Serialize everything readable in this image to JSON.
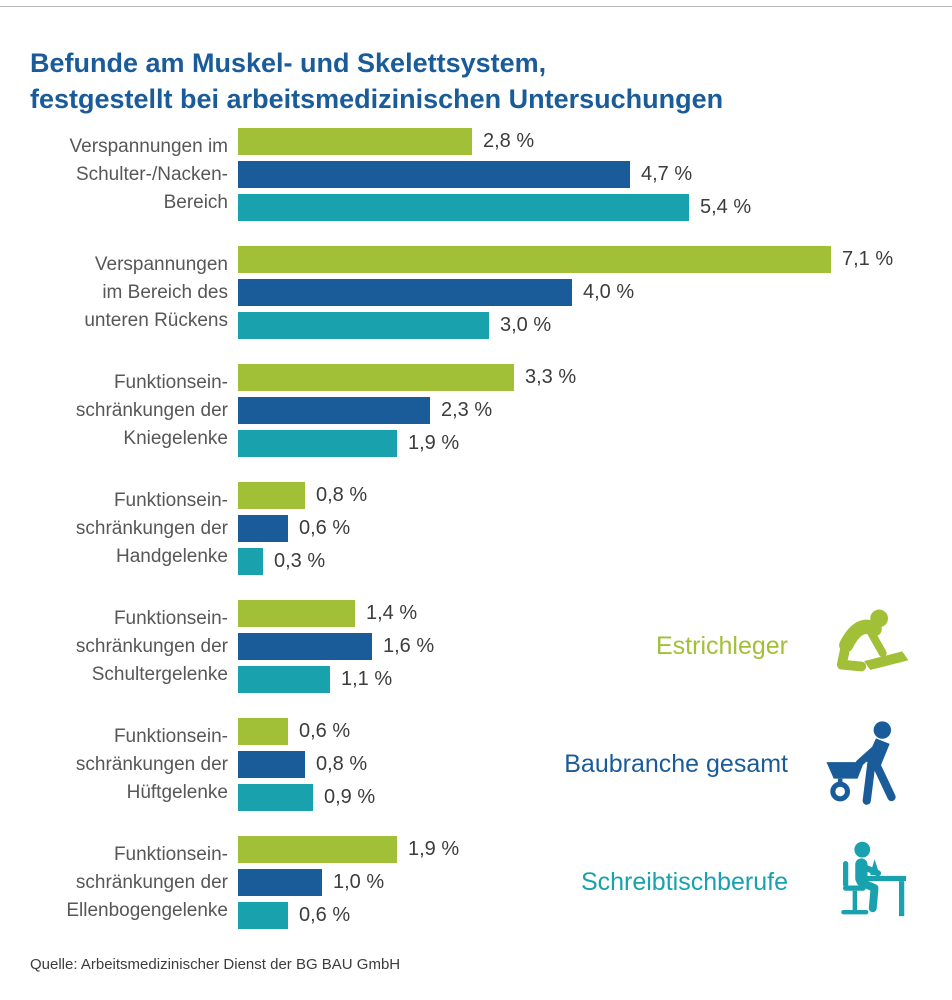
{
  "title": {
    "line1": "Befunde am Muskel- und Skelettsystem,",
    "line2": "festgestellt bei arbeitsmedizinischen Untersuchungen"
  },
  "source": "Quelle: Arbeitsmedizinischer Dienst der BG BAU GmbH",
  "colors": {
    "title_blue": "#1a5c99",
    "estrichleger_green": "#a2c037",
    "baubranche_blue": "#1a5c99",
    "schreibtisch_teal": "#19a2ad",
    "label_gray": "#575756",
    "value_gray": "#3c3c3b"
  },
  "legend": [
    {
      "label": "Estrichleger",
      "color": "#a2c037",
      "icon": "screed-worker-icon"
    },
    {
      "label": "Baubranche gesamt",
      "color": "#1a5c99",
      "icon": "wheelbarrow-worker-icon"
    },
    {
      "label": "Schreibtischberufe",
      "color": "#19a2ad",
      "icon": "desk-worker-icon"
    }
  ],
  "chart_data": {
    "type": "bar",
    "orientation": "horizontal",
    "title": "Befunde am Muskel- und Skelettsystem, festgestellt bei arbeitsmedizinischen Untersuchungen",
    "unit": "%",
    "xlim": [
      0,
      7.5
    ],
    "grid": false,
    "legend_position": "right-middle",
    "categories": [
      [
        "Verspannungen im",
        "Schulter-/Nacken-",
        "Bereich"
      ],
      [
        "Verspannungen",
        "im Bereich des",
        "unteren Rückens"
      ],
      [
        "Funktionsein-",
        "schränkungen der",
        "Kniegelenke"
      ],
      [
        "Funktionsein-",
        "schränkungen der",
        "Handgelenke"
      ],
      [
        "Funktionsein-",
        "schränkungen der",
        "Schultergelenke"
      ],
      [
        "Funktionsein-",
        "schränkungen der",
        "Hüftgelenke"
      ],
      [
        "Funktionsein-",
        "schränkungen der",
        "Ellenbogengelenke"
      ]
    ],
    "series": [
      {
        "name": "Estrichleger",
        "color": "#a2c037",
        "values": [
          2.8,
          7.1,
          3.3,
          0.8,
          1.4,
          0.6,
          1.9
        ],
        "labels": [
          "2,8 %",
          "7,1 %",
          "3,3 %",
          "0,8 %",
          "1,4 %",
          "0,6 %",
          "1,9 %"
        ]
      },
      {
        "name": "Baubranche gesamt",
        "color": "#1a5c99",
        "values": [
          4.7,
          4.0,
          2.3,
          0.6,
          1.6,
          0.8,
          1.0
        ],
        "labels": [
          "4,7 %",
          "4,0 %",
          "2,3 %",
          "0,6 %",
          "1,6 %",
          "0,8 %",
          "1,0 %"
        ]
      },
      {
        "name": "Schreibtischberufe",
        "color": "#19a2ad",
        "values": [
          5.4,
          3.0,
          1.9,
          0.3,
          1.1,
          0.9,
          0.6
        ],
        "labels": [
          "5,4 %",
          "3,0 %",
          "1,9 %",
          "0,3 %",
          "1,1 %",
          "0,9 %",
          "0,6 %"
        ]
      }
    ]
  }
}
